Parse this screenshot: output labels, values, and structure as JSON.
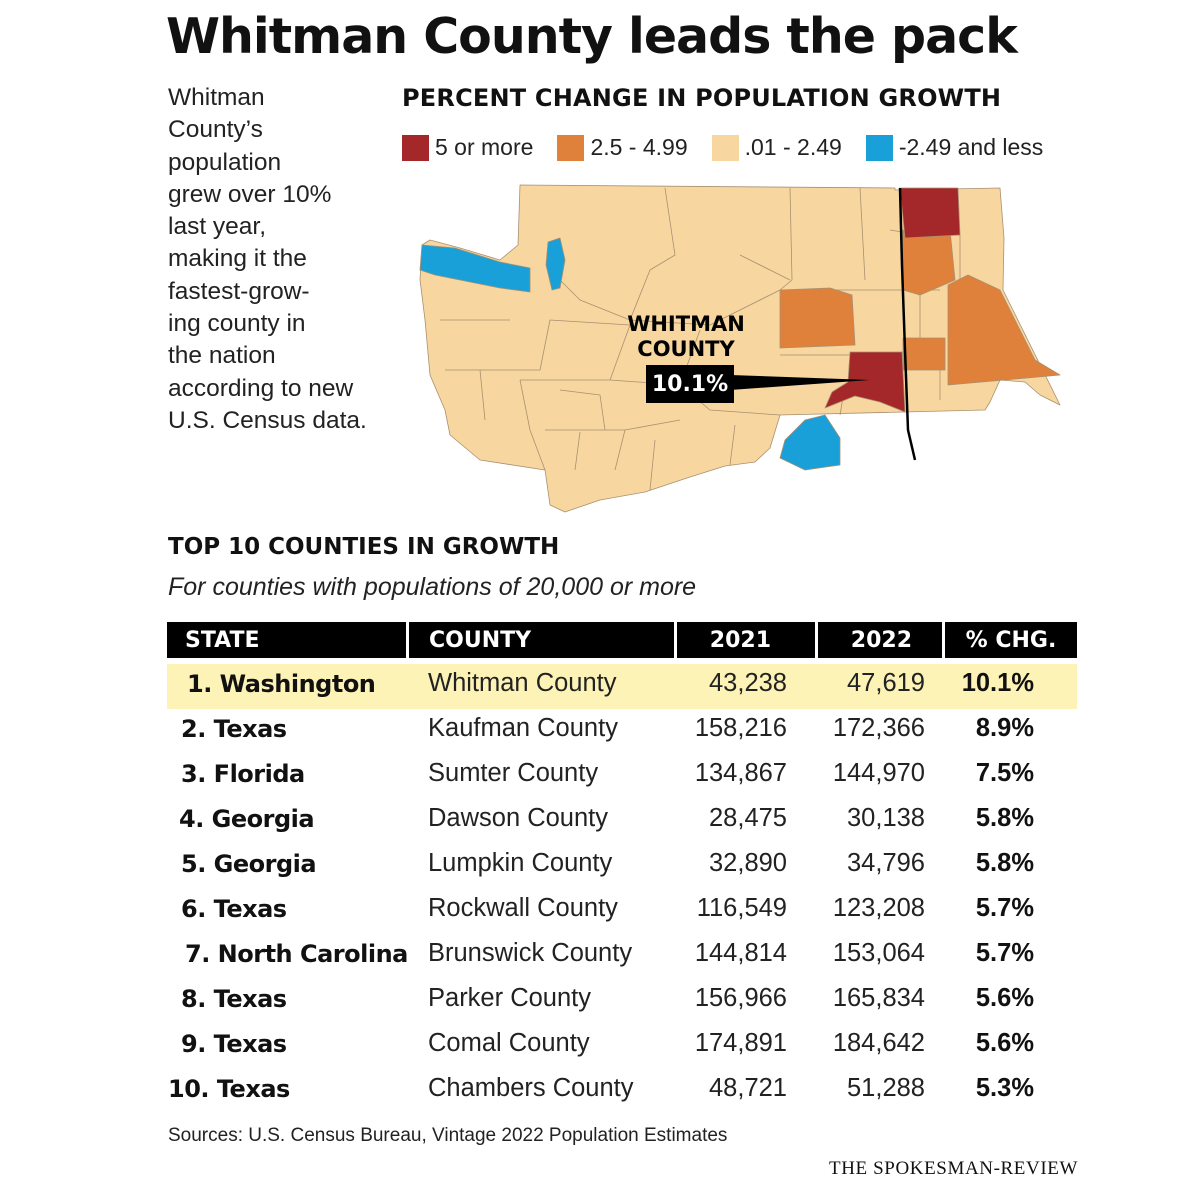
{
  "headline": "Whitman County leads the pack",
  "intro_lines": [
    "Whitman",
    "County’s",
    "population",
    "grew over 10%",
    "last year,",
    "making it the",
    "fastest-grow-",
    "ing county in",
    "the nation",
    "according to new",
    "U.S. Census data."
  ],
  "map": {
    "title": "PERCENT CHANGE IN POPULATION GROWTH",
    "legend": [
      {
        "label": "5 or more",
        "color": "#a4282a"
      },
      {
        "label": "2.5 - 4.99",
        "color": "#e0813b"
      },
      {
        "label": ".01 - 2.49",
        "color": "#f7d6a0"
      },
      {
        "label": "-2.49 and less",
        "color": "#1aa0d8"
      }
    ],
    "callout": {
      "line1": "WHITMAN",
      "line2": "COUNTY",
      "value": "10.1%"
    }
  },
  "table": {
    "title": "TOP 10 COUNTIES IN GROWTH",
    "subtitle": "For counties with populations of 20,000 or more",
    "headers": [
      "STATE",
      "COUNTY",
      "2021",
      "2022",
      "% CHG."
    ],
    "rows": [
      {
        "state": "1. Washington",
        "county": "Whitman County",
        "y2021": "43,238",
        "y2022": "47,619",
        "pct": "10.1%"
      },
      {
        "state": "2. Texas",
        "county": "Kaufman County",
        "y2021": "158,216",
        "y2022": "172,366",
        "pct": "8.9%"
      },
      {
        "state": "3. Florida",
        "county": "Sumter County",
        "y2021": "134,867",
        "y2022": "144,970",
        "pct": "7.5%"
      },
      {
        "state": "4. Georgia",
        "county": "Dawson County",
        "y2021": "28,475",
        "y2022": "30,138",
        "pct": "5.8%"
      },
      {
        "state": "5. Georgia",
        "county": "Lumpkin County",
        "y2021": "32,890",
        "y2022": "34,796",
        "pct": "5.8%"
      },
      {
        "state": "6. Texas",
        "county": "Rockwall County",
        "y2021": "116,549",
        "y2022": "123,208",
        "pct": "5.7%"
      },
      {
        "state": "7. North Carolina",
        "county": "Brunswick County",
        "y2021": "144,814",
        "y2022": "153,064",
        "pct": "5.7%"
      },
      {
        "state": "8. Texas",
        "county": "Parker County",
        "y2021": "156,966",
        "y2022": "165,834",
        "pct": "5.6%"
      },
      {
        "state": "9. Texas",
        "county": "Comal County",
        "y2021": "174,891",
        "y2022": "184,642",
        "pct": "5.6%"
      },
      {
        "state": "10. Texas",
        "county": "Chambers County",
        "y2021": "48,721",
        "y2022": "51,288",
        "pct": "5.3%"
      }
    ]
  },
  "sources": "Sources: U.S. Census Bureau, Vintage 2022 Population Estimates",
  "credit": "THE SPOKESMAN-REVIEW"
}
